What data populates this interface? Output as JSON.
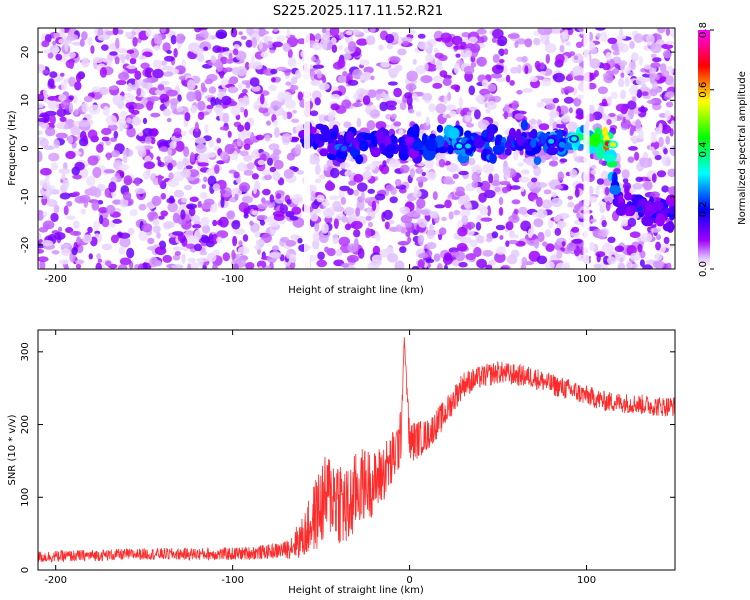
{
  "title": "S225.2025.117.11.52.R21",
  "chart_data": [
    {
      "type": "heatmap",
      "xlabel": "Height of straight line (km)",
      "ylabel": "Frequency (Hz)",
      "xlim": [
        -210,
        150
      ],
      "ylim": [
        -25,
        25
      ],
      "xticks": [
        -200,
        -100,
        0,
        100
      ],
      "yticks": [
        -20,
        -10,
        0,
        10,
        20
      ],
      "colorbar": {
        "label": "Normalized spectral amplitude",
        "range": [
          0.0,
          0.8
        ],
        "ticks": [
          "0.0",
          "0.2",
          "0.4",
          "0.6",
          "0.8"
        ],
        "colors": [
          "#ffffff",
          "#a000ff",
          "#0000ff",
          "#00ffff",
          "#00ff00",
          "#ffff00",
          "#ff0000",
          "#ff00ff"
        ]
      },
      "noise_level": 0.12,
      "ridge": [
        {
          "x": -60,
          "freq": 3.0,
          "amp": 0.18
        },
        {
          "x": -40,
          "freq": 0.5,
          "amp": 0.25
        },
        {
          "x": -20,
          "freq": 1.0,
          "amp": 0.2
        },
        {
          "x": 0,
          "freq": 1.0,
          "amp": 0.2
        },
        {
          "x": 30,
          "freq": 1.0,
          "amp": 0.3
        },
        {
          "x": 60,
          "freq": 1.0,
          "amp": 0.22
        },
        {
          "x": 80,
          "freq": 1.5,
          "amp": 0.28
        },
        {
          "x": 92,
          "freq": 2.0,
          "amp": 0.32
        },
        {
          "x": 112,
          "freq": 1.0,
          "amp": 0.65
        },
        {
          "x": 118,
          "freq": -12.0,
          "amp": 0.18
        },
        {
          "x": 150,
          "freq": -13.0,
          "amp": 0.18
        }
      ],
      "hot_spots": [
        {
          "x": 28,
          "freq": 0.5,
          "amp": 0.32
        },
        {
          "x": 33,
          "freq": 0.5,
          "amp": 0.3
        },
        {
          "x": 80,
          "freq": 1.5,
          "amp": 0.3
        },
        {
          "x": 93,
          "freq": 2.0,
          "amp": 0.35
        },
        {
          "x": 112,
          "freq": 1.0,
          "amp": 0.7
        },
        {
          "x": 115,
          "freq": 0.8,
          "amp": 0.55
        },
        {
          "x": 130,
          "freq": -12.5,
          "amp": 0.22
        },
        {
          "x": -37,
          "freq": 0.0,
          "amp": 0.25
        }
      ],
      "blank_columns": [
        -58,
        100
      ]
    },
    {
      "type": "line",
      "xlabel": "Height of straight line (km)",
      "ylabel": "SNR (10 * v/v)",
      "xlim": [
        -210,
        150
      ],
      "ylim": [
        0,
        330
      ],
      "xticks": [
        -200,
        -100,
        0,
        100
      ],
      "yticks": [
        0,
        100,
        200,
        300
      ],
      "series": [
        {
          "color": "#ff2a2a",
          "x": [
            -210,
            -150,
            -100,
            -80,
            -70,
            -60,
            -50,
            -45,
            -40,
            -35,
            -30,
            -25,
            -20,
            -10,
            -5,
            -3,
            0,
            10,
            20,
            30,
            40,
            50,
            60,
            70,
            80,
            90,
            100,
            110,
            120,
            130,
            140,
            150
          ],
          "y": [
            18,
            22,
            22,
            25,
            28,
            45,
            90,
            105,
            100,
            80,
            110,
            120,
            118,
            150,
            180,
            320,
            175,
            185,
            215,
            255,
            265,
            272,
            268,
            265,
            255,
            248,
            240,
            232,
            230,
            228,
            225,
            225
          ],
          "noise": [
            8,
            8,
            9,
            10,
            12,
            30,
            60,
            60,
            65,
            60,
            55,
            50,
            45,
            40,
            40,
            0,
            30,
            22,
            20,
            18,
            16,
            16,
            15,
            15,
            15,
            15,
            14,
            14,
            14,
            14,
            14,
            14
          ]
        }
      ]
    }
  ]
}
